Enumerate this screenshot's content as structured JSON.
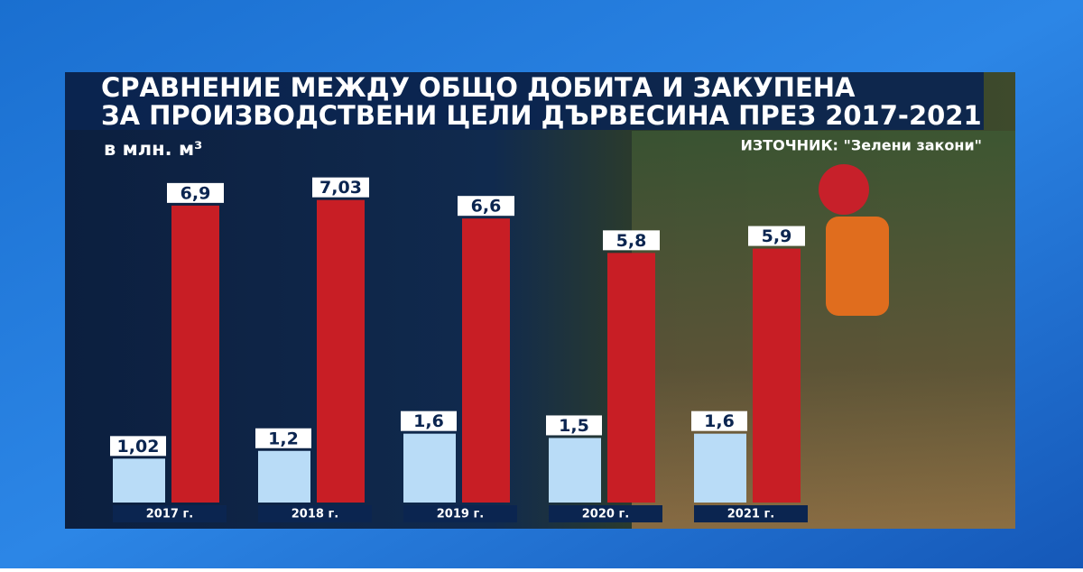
{
  "chart_data": {
    "type": "bar",
    "title": [
      "СРАВНЕНИЕ МЕЖДУ ОБЩО ДОБИТА И ЗАКУПЕНА",
      "ЗА ПРОИЗВОДСТВЕНИ ЦЕЛИ ДЪРВЕСИНА ПРЕЗ 2017-2021"
    ],
    "subtitle": "в млн. м³",
    "source": "ИЗТОЧНИК: \"Зелени закони\"",
    "categories": [
      "2017 г.",
      "2018 г.",
      "2019 г.",
      "2020 г.",
      "2021 г."
    ],
    "series": [
      {
        "color": "#b9dcf7",
        "values": [
          1.02,
          1.2,
          1.6,
          1.5,
          1.6
        ],
        "value_labels": [
          "1,02",
          "1,2",
          "1,6",
          "1,5",
          "1,6"
        ]
      },
      {
        "color": "#c81e25",
        "values": [
          6.9,
          7.03,
          6.6,
          5.8,
          5.9
        ],
        "value_labels": [
          "6,9",
          "7,03",
          "6,6",
          "5,8",
          "5,9"
        ]
      }
    ]
  }
}
